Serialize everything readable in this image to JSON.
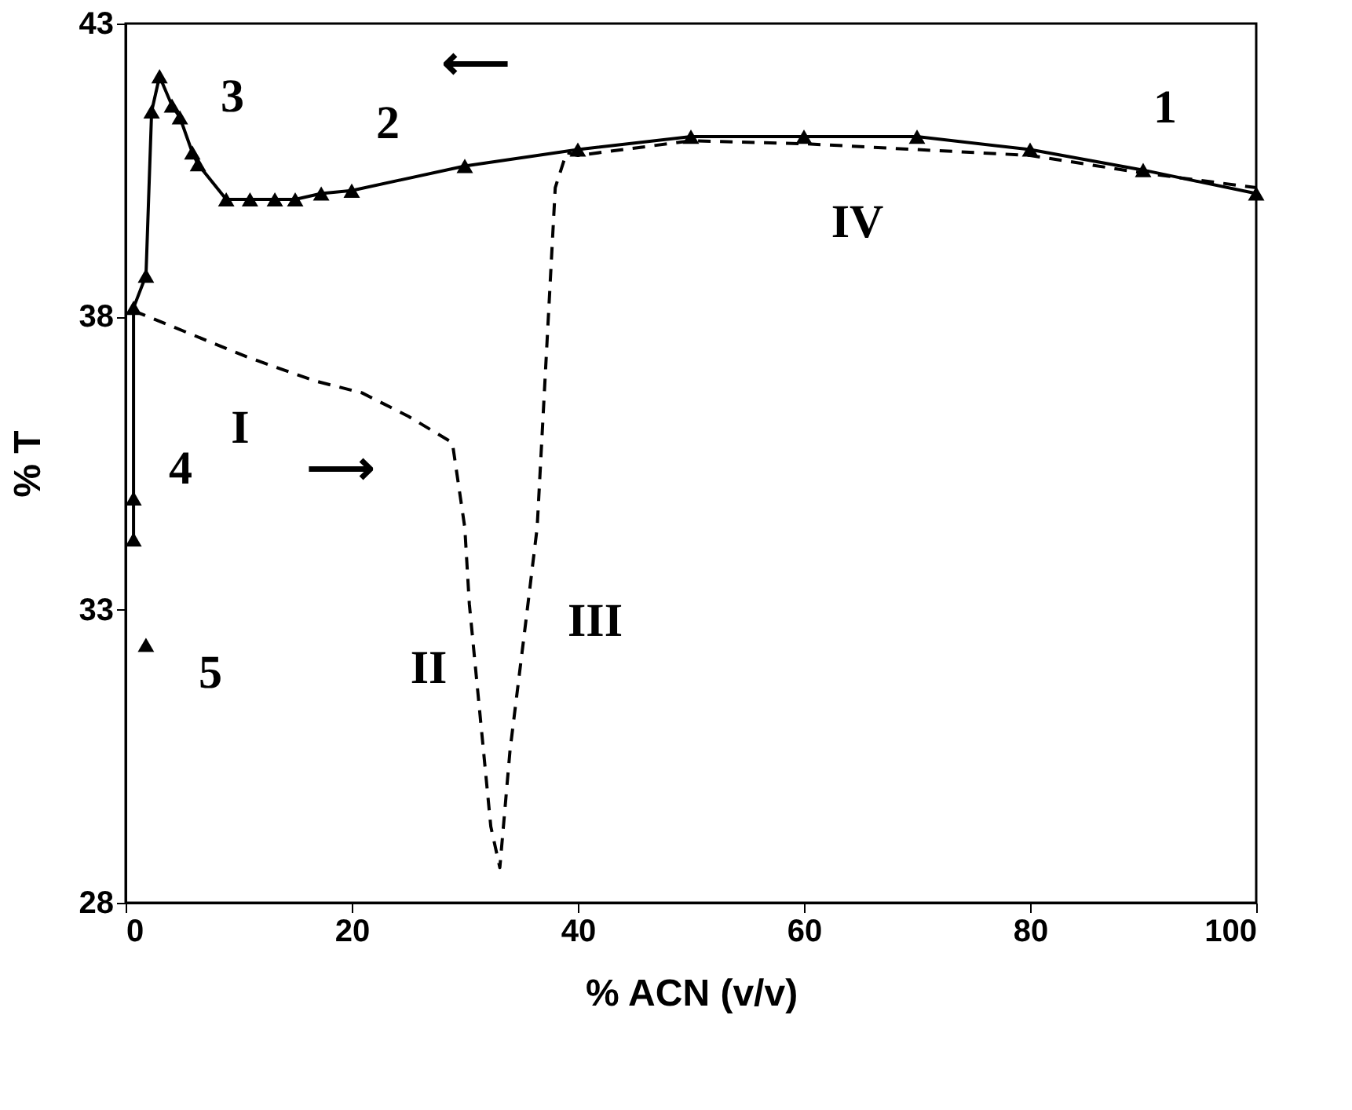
{
  "chart_data": {
    "type": "line",
    "xlabel": "% ACN (v/v)",
    "ylabel": "% T",
    "xlim": [
      0,
      100
    ],
    "ylim": [
      28,
      43
    ],
    "xticks": [
      0,
      20,
      40,
      60,
      80,
      100
    ],
    "yticks": [
      28,
      33,
      38,
      43
    ],
    "grid": false,
    "series": [
      {
        "color": "#000000",
        "marker": "triangle",
        "line_style": "solid",
        "x": [
          100,
          90,
          80,
          70,
          60,
          50,
          40,
          30,
          20,
          17.3,
          15,
          13.2,
          11,
          8.9,
          6.4,
          5.9,
          4.8,
          4.1,
          3,
          2.3,
          1.8,
          0.7,
          0.7,
          0.7
        ],
        "values": [
          40.1,
          40.5,
          40.85,
          41.07,
          41.07,
          41.07,
          40.85,
          40.57,
          40.15,
          40.1,
          40.0,
          40.0,
          40.0,
          40.0,
          40.6,
          40.8,
          41.4,
          41.6,
          42.1,
          41.5,
          38.7,
          38.15,
          34.9,
          34.2
        ]
      },
      {
        "color": "#000000",
        "marker": "none",
        "line_style": "dashed",
        "x": [
          0.7,
          10.9,
          16.8,
          20.9,
          25,
          28.9,
          30,
          30.4,
          31.3,
          32.3,
          33.1,
          34,
          35.4,
          36.4,
          38,
          39,
          40,
          50,
          60,
          70,
          80,
          90,
          100
        ],
        "values": [
          38.1,
          37.3,
          36.9,
          36.7,
          36.3,
          35.85,
          34.4,
          33.1,
          31.3,
          29.3,
          28.6,
          30.6,
          32.8,
          34.4,
          40.2,
          40.8,
          40.75,
          41.0,
          40.95,
          40.85,
          40.75,
          40.45,
          40.2
        ]
      },
      {
        "type": "scatter",
        "color": "#000000",
        "marker": "triangle",
        "x": [
          1.8
        ],
        "values": [
          32.4
        ]
      }
    ],
    "annotations": [
      "1",
      "2",
      "3",
      "4",
      "5",
      "I",
      "II",
      "III",
      "IV",
      "⟵",
      "⟶"
    ]
  }
}
